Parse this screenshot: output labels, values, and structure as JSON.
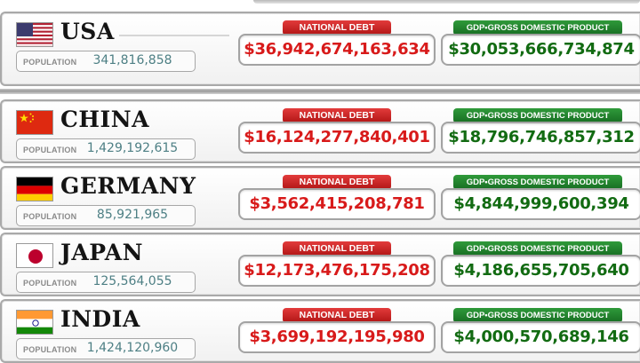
{
  "labels": {
    "population": "POPULATION",
    "national_debt": "NATIONAL DEBT",
    "gdp": "GDP•GROSS DOMESTIC PRODUCT"
  },
  "colors": {
    "debt_red": "#d81a1a",
    "gdp_green": "#126b12",
    "population_teal": "#4d7f84",
    "debt_badge": "#c42020",
    "gdp_badge": "#238a2e"
  },
  "countries": [
    {
      "name": "USA",
      "flag_icon": "usa-flag-icon",
      "population": "341,816,858",
      "national_debt": "$36,942,674,163,634",
      "gdp": "$30,053,666,734,874"
    },
    {
      "name": "CHINA",
      "flag_icon": "china-flag-icon",
      "population": "1,429,192,615",
      "national_debt": "$16,124,277,840,401",
      "gdp": "$18,796,746,857,312"
    },
    {
      "name": "GERMANY",
      "flag_icon": "germany-flag-icon",
      "population": "85,921,965",
      "national_debt": "$3,562,415,208,781",
      "gdp": "$4,844,999,600,394"
    },
    {
      "name": "JAPAN",
      "flag_icon": "japan-flag-icon",
      "population": "125,564,055",
      "national_debt": "$12,173,476,175,208",
      "gdp": "$4,186,655,705,640"
    },
    {
      "name": "INDIA",
      "flag_icon": "india-flag-icon",
      "population": "1,424,120,960",
      "national_debt": "$3,699,192,195,980",
      "gdp": "$4,000,570,689,146"
    }
  ]
}
